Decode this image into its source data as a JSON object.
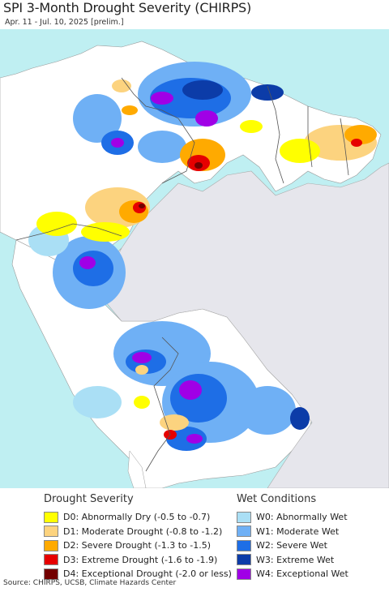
{
  "header": {
    "title": "SPI 3-Month Drought Severity (CHIRPS)",
    "subtitle": "Apr. 11 - Jul. 10, 2025 [prelim.]"
  },
  "map": {
    "ocean_color": "#bfeff2",
    "land_base_color": "#ffffff",
    "no_data_color": "#e6e6ec"
  },
  "legend": {
    "drought": {
      "header": "Drought Severity",
      "items": [
        {
          "label": "D0: Abnormally Dry (-0.5 to -0.7)",
          "color": "#ffff00"
        },
        {
          "label": "D1: Moderate Drought (-0.8 to -1.2)",
          "color": "#fcd37f"
        },
        {
          "label": "D2: Severe Drought (-1.3 to -1.5)",
          "color": "#ffaa00"
        },
        {
          "label": "D3: Extreme Drought (-1.6 to -1.9)",
          "color": "#e60000"
        },
        {
          "label": "D4: Exceptional Drought (-2.0 or less)",
          "color": "#730000"
        }
      ]
    },
    "wet": {
      "header": "Wet Conditions",
      "items": [
        {
          "label": "W0: Abnormally Wet",
          "color": "#aadff5"
        },
        {
          "label": "W1: Moderate Wet",
          "color": "#6fb0f5"
        },
        {
          "label": "W2: Severe Wet",
          "color": "#1e6ee6"
        },
        {
          "label": "W3: Extreme Wet",
          "color": "#0c3ca8"
        },
        {
          "label": "W4: Exceptional Wet",
          "color": "#a000e6"
        }
      ]
    }
  },
  "footer": {
    "source": "Source: CHIRPS, UCSB, Climate Hazards Center"
  }
}
